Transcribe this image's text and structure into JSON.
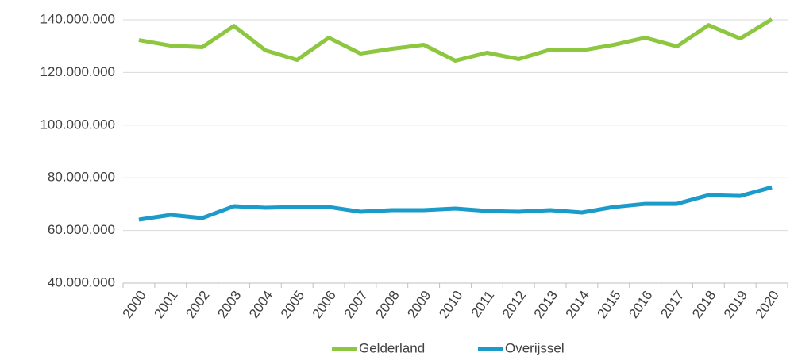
{
  "chart_data": {
    "type": "line",
    "categories": [
      "2000",
      "2001",
      "2002",
      "2003",
      "2004",
      "2005",
      "2006",
      "2007",
      "2008",
      "2009",
      "2010",
      "2011",
      "2012",
      "2013",
      "2014",
      "2015",
      "2016",
      "2017",
      "2018",
      "2019",
      "2020"
    ],
    "series": [
      {
        "name": "Gelderland",
        "color": "#8dc63f",
        "values": [
          132300000,
          130200000,
          129600000,
          137700000,
          128400000,
          124800000,
          133200000,
          127200000,
          129000000,
          130500000,
          124500000,
          127500000,
          125100000,
          128700000,
          128400000,
          130500000,
          133200000,
          129900000,
          138000000,
          132900000,
          140200000
        ]
      },
      {
        "name": "Overijssel",
        "color": "#1b9bc9",
        "values": [
          64100000,
          65900000,
          64700000,
          69200000,
          68600000,
          68900000,
          68900000,
          67100000,
          67700000,
          67700000,
          68300000,
          67400000,
          67100000,
          67700000,
          66800000,
          68900000,
          70100000,
          70100000,
          73400000,
          73100000,
          76400000
        ]
      }
    ],
    "ylim": [
      40000000,
      140000000
    ],
    "yticks": [
      {
        "value": 40000000,
        "label": "40.000.000"
      },
      {
        "value": 60000000,
        "label": "60.000.000"
      },
      {
        "value": 80000000,
        "label": "80.000.000"
      },
      {
        "value": 100000000,
        "label": "100.000.000"
      },
      {
        "value": 120000000,
        "label": "120.000.000"
      },
      {
        "value": 140000000,
        "label": "140.000.000"
      }
    ],
    "grid": true,
    "legend": "bottom"
  }
}
